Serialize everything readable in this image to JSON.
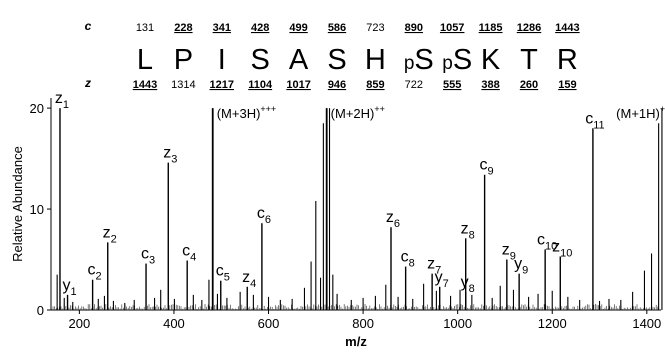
{
  "chart_data": {
    "type": "bar",
    "xlabel": "m/z",
    "ylabel": "Relative Abundance",
    "xlim": [
      140,
      1430
    ],
    "ylim": [
      0,
      21
    ],
    "x_ticks": [
      "200",
      "400",
      "600",
      "800",
      "1000",
      "1200",
      "1400"
    ],
    "y_ticks": [
      "0",
      "10",
      "20"
    ],
    "sequence": {
      "residues": [
        "L",
        "P",
        "I",
        "S",
        "A",
        "S",
        "H",
        "S",
        "S",
        "K",
        "T",
        "R"
      ],
      "mod_prefix": [
        "",
        "",
        "",
        "",
        "",
        "",
        "",
        "p",
        "p",
        "",
        "",
        ""
      ],
      "c_label": "c",
      "z_label": "z",
      "c_values": [
        "131",
        "228",
        "341",
        "428",
        "499",
        "586",
        "723",
        "890",
        "1057",
        "1185",
        "1286",
        "1443"
      ],
      "c_observed": [
        false,
        true,
        true,
        true,
        true,
        true,
        false,
        true,
        true,
        true,
        true,
        true
      ],
      "z_values": [
        "1443",
        "1314",
        "1217",
        "1104",
        "1017",
        "946",
        "859",
        "722",
        "555",
        "388",
        "260",
        "159"
      ],
      "z_observed": [
        true,
        false,
        true,
        true,
        true,
        true,
        true,
        false,
        true,
        true,
        true,
        true
      ]
    },
    "labeled_peaks": [
      {
        "letter": "z",
        "sub": "1",
        "x": 159,
        "y": 20.0
      },
      {
        "letter": "y",
        "sub": "1",
        "x": 175,
        "y": 1.5
      },
      {
        "letter": "c",
        "sub": "2",
        "x": 228,
        "y": 3.0
      },
      {
        "letter": "z",
        "sub": "2",
        "x": 260,
        "y": 6.7
      },
      {
        "letter": "c",
        "sub": "3",
        "x": 341,
        "y": 4.6
      },
      {
        "letter": "z",
        "sub": "3",
        "x": 388,
        "y": 14.6
      },
      {
        "letter": "c",
        "sub": "4",
        "x": 428,
        "y": 4.9
      },
      {
        "letter": "c",
        "sub": "5",
        "x": 499,
        "y": 2.9
      },
      {
        "letter": "z",
        "sub": "4",
        "x": 555,
        "y": 2.3
      },
      {
        "letter": "c",
        "sub": "6",
        "x": 586,
        "y": 8.6
      },
      {
        "letter": "z",
        "sub": "6",
        "x": 859,
        "y": 8.2
      },
      {
        "letter": "c",
        "sub": "8",
        "x": 890,
        "y": 4.3
      },
      {
        "letter": "z",
        "sub": "7",
        "x": 946,
        "y": 3.6
      },
      {
        "letter": "y",
        "sub": "7",
        "x": 962,
        "y": 2.3
      },
      {
        "letter": "y",
        "sub": "8",
        "x": 1017,
        "y": 1.8
      },
      {
        "letter": "z",
        "sub": "8",
        "x": 1017,
        "y": 7.1
      },
      {
        "letter": "c",
        "sub": "9",
        "x": 1057,
        "y": 13.4
      },
      {
        "letter": "z",
        "sub": "9",
        "x": 1104,
        "y": 5.0
      },
      {
        "letter": "y",
        "sub": "9",
        "x": 1130,
        "y": 3.6
      },
      {
        "letter": "c",
        "sub": "10",
        "x": 1185,
        "y": 6.0
      },
      {
        "letter": "z",
        "sub": "10",
        "x": 1217,
        "y": 5.3
      },
      {
        "letter": "c",
        "sub": "11",
        "x": 1286,
        "y": 18.0
      }
    ],
    "precursor_peaks": [
      {
        "label": "(M+3H)",
        "charge_sup": "+++",
        "x": 482,
        "y": 20.0
      },
      {
        "label": "(M+2H)",
        "charge_sup": "++",
        "x": 723,
        "y": 20.0
      },
      {
        "label": "(M+1H)",
        "charge_sup": "+",
        "x": 1443,
        "y": 20.0
      }
    ],
    "other_peaks": [
      {
        "x": 153,
        "y": 3.5
      },
      {
        "x": 168,
        "y": 1.2
      },
      {
        "x": 186,
        "y": 0.8
      },
      {
        "x": 240,
        "y": 1.1
      },
      {
        "x": 253,
        "y": 1.4
      },
      {
        "x": 272,
        "y": 0.9
      },
      {
        "x": 296,
        "y": 0.7
      },
      {
        "x": 316,
        "y": 1.0
      },
      {
        "x": 359,
        "y": 1.2
      },
      {
        "x": 372,
        "y": 2.0
      },
      {
        "x": 401,
        "y": 1.1
      },
      {
        "x": 441,
        "y": 1.5
      },
      {
        "x": 459,
        "y": 1.0
      },
      {
        "x": 474,
        "y": 3.0
      },
      {
        "x": 492,
        "y": 1.6
      },
      {
        "x": 512,
        "y": 1.2
      },
      {
        "x": 540,
        "y": 1.8
      },
      {
        "x": 568,
        "y": 1.5
      },
      {
        "x": 600,
        "y": 1.3
      },
      {
        "x": 625,
        "y": 1.0
      },
      {
        "x": 650,
        "y": 1.1
      },
      {
        "x": 676,
        "y": 2.2
      },
      {
        "x": 690,
        "y": 4.8
      },
      {
        "x": 700,
        "y": 10.8
      },
      {
        "x": 710,
        "y": 3.2
      },
      {
        "x": 716,
        "y": 18.5
      },
      {
        "x": 729,
        "y": 20.0
      },
      {
        "x": 736,
        "y": 3.5
      },
      {
        "x": 745,
        "y": 1.6
      },
      {
        "x": 775,
        "y": 1.0
      },
      {
        "x": 800,
        "y": 1.2
      },
      {
        "x": 826,
        "y": 1.4
      },
      {
        "x": 848,
        "y": 2.5
      },
      {
        "x": 874,
        "y": 1.3
      },
      {
        "x": 905,
        "y": 1.1
      },
      {
        "x": 928,
        "y": 2.6
      },
      {
        "x": 955,
        "y": 1.9
      },
      {
        "x": 985,
        "y": 1.4
      },
      {
        "x": 1005,
        "y": 2.0
      },
      {
        "x": 1030,
        "y": 1.5
      },
      {
        "x": 1073,
        "y": 1.2
      },
      {
        "x": 1090,
        "y": 2.4
      },
      {
        "x": 1118,
        "y": 2.0
      },
      {
        "x": 1150,
        "y": 1.3
      },
      {
        "x": 1170,
        "y": 1.6
      },
      {
        "x": 1200,
        "y": 1.9
      },
      {
        "x": 1233,
        "y": 1.3
      },
      {
        "x": 1258,
        "y": 1.0
      },
      {
        "x": 1300,
        "y": 0.9
      },
      {
        "x": 1320,
        "y": 1.1
      },
      {
        "x": 1345,
        "y": 1.0
      },
      {
        "x": 1370,
        "y": 1.8
      },
      {
        "x": 1395,
        "y": 3.9
      },
      {
        "x": 1410,
        "y": 5.6
      },
      {
        "x": 1425,
        "y": 18.5
      },
      {
        "x": 1432,
        "y": 20.0
      }
    ]
  }
}
